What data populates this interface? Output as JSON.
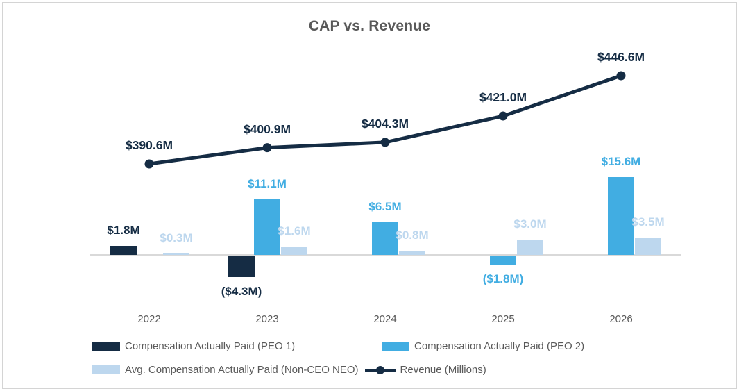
{
  "chart_data": {
    "type": "combo",
    "title": "CAP vs. Revenue",
    "categories": [
      "2022",
      "2023",
      "2024",
      "2025",
      "2026"
    ],
    "series": [
      {
        "name": "Compensation Actually Paid (PEO 1)",
        "type": "bar",
        "color": "#152c44",
        "values": [
          1.8,
          -4.3,
          null,
          null,
          null
        ],
        "labels": [
          "$1.8M",
          "($4.3M)",
          null,
          null,
          null
        ]
      },
      {
        "name": "Compensation Actually Paid (PEO 2)",
        "type": "bar",
        "color": "#41ade2",
        "values": [
          null,
          11.1,
          6.5,
          -1.8,
          15.6
        ],
        "labels": [
          null,
          "$11.1M",
          "$6.5M",
          "($1.8M)",
          "$15.6M"
        ]
      },
      {
        "name": "Avg. Compensation Actually Paid (Non-CEO NEO)",
        "type": "bar",
        "color": "#bdd7ee",
        "values": [
          0.3,
          1.6,
          0.8,
          3.0,
          3.5
        ],
        "labels": [
          "$0.3M",
          "$1.6M",
          "$0.8M",
          "$3.0M",
          "$3.5M"
        ]
      },
      {
        "name": "Revenue (Millions)",
        "type": "line",
        "color": "#152c44",
        "values": [
          390.6,
          400.9,
          404.3,
          421.0,
          446.6
        ],
        "labels": [
          "$390.6M",
          "$400.9M",
          "$404.3M",
          "$421.0M",
          "$446.6M"
        ]
      }
    ],
    "axes": {
      "y_axis_visible": false,
      "gridlines": false,
      "baseline_color": "#d9d9d9"
    },
    "legend_position": "bottom",
    "colors": {
      "title_text": "#595959",
      "axis_text": "#595959",
      "legend_text": "#595959"
    }
  }
}
